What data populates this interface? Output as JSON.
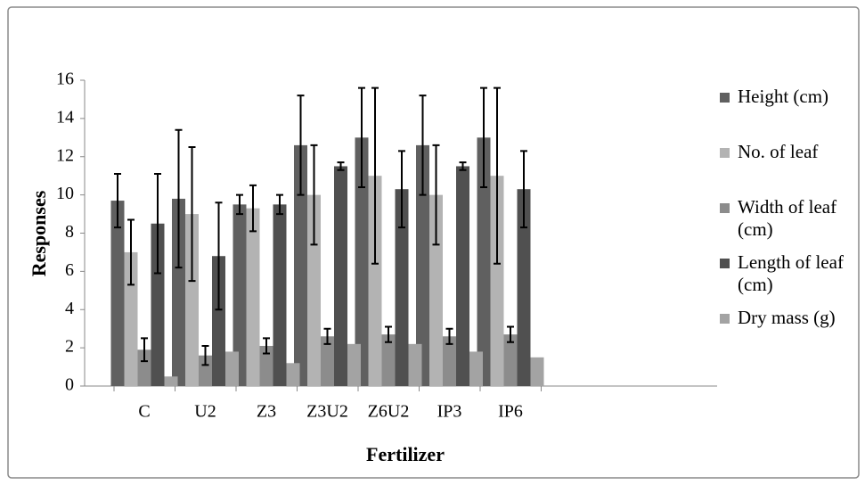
{
  "chart_data": {
    "type": "bar",
    "categories": [
      "C",
      "U2",
      "Z3",
      "Z3U2",
      "Z6U2",
      "IP3",
      "IP6"
    ],
    "series": [
      {
        "name": "Height (cm)",
        "color": "#606060",
        "values": [
          9.7,
          9.8,
          9.5,
          12.6,
          13,
          12.6,
          13
        ],
        "errors": [
          1.4,
          3.6,
          0.5,
          2.6,
          2.6,
          2.6,
          2.6
        ]
      },
      {
        "name": "No. of leaf",
        "color": "#b3b3b3",
        "values": [
          7,
          9,
          9.3,
          10,
          11,
          10,
          11
        ],
        "errors": [
          1.7,
          3.5,
          1.2,
          2.6,
          4.6,
          2.6,
          4.6
        ]
      },
      {
        "name": "Width of leaf (cm)",
        "color": "#8c8c8c",
        "values": [
          1.9,
          1.6,
          2.1,
          2.6,
          2.7,
          2.6,
          2.7
        ],
        "errors": [
          0.6,
          0.5,
          0.4,
          0.4,
          0.4,
          0.4,
          0.4
        ]
      },
      {
        "name": "Length of leaf (cm)",
        "color": "#505050",
        "values": [
          8.5,
          6.8,
          9.5,
          11.5,
          10.3,
          11.5,
          10.3
        ],
        "errors": [
          2.6,
          2.8,
          0.5,
          0.2,
          2,
          0.2,
          2
        ]
      },
      {
        "name": "Dry mass (g)",
        "color": "#a3a3a3",
        "values": [
          0.5,
          1.8,
          1.2,
          2.2,
          2.2,
          1.8,
          1.5
        ]
      }
    ],
    "xlabel": "Fertilizer",
    "ylabel": "Responses",
    "ylim": [
      0,
      16
    ],
    "yticks": [
      0,
      2,
      4,
      6,
      8,
      10,
      12,
      14,
      16
    ],
    "legend": "right"
  }
}
